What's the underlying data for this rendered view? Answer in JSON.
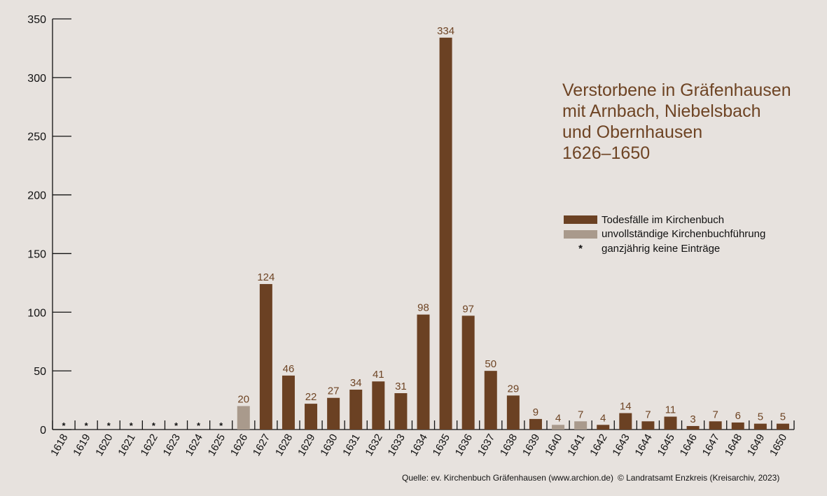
{
  "colors": {
    "background": "#e7e2de",
    "full": "#6b4123",
    "partial": "#a99a8c",
    "title": "#6e4424",
    "value_label": "#6e4424",
    "axis": "#111111"
  },
  "title_lines": [
    "Verstorbene in Gräfenhausen",
    "mit Arnbach, Niebelsbach",
    "und Obernhausen",
    "1626–1650"
  ],
  "legend": {
    "full_label": "Todesfälle im Kirchenbuch",
    "partial_label": "unvollständige Kirchenbuchführung",
    "star_symbol": "*",
    "star_label": "ganzjährig keine Einträge"
  },
  "source": {
    "quelle": "Quelle: ev. Kirchenbuch Gräfenhausen (www.archion.de)",
    "copyright": "© Landratsamt Enzkreis (Kreisarchiv, 2023)"
  },
  "chart_data": {
    "type": "bar",
    "ylim": [
      0,
      350
    ],
    "yticks": [
      0,
      50,
      100,
      150,
      200,
      250,
      300,
      350
    ],
    "categories": [
      "1618",
      "1619",
      "1620",
      "1621",
      "1622",
      "1623",
      "1624",
      "1625",
      "1626",
      "1627",
      "1628",
      "1629",
      "1630",
      "1631",
      "1632",
      "1633",
      "1634",
      "1635",
      "1636",
      "1637",
      "1638",
      "1639",
      "1640",
      "1641",
      "1642",
      "1643",
      "1644",
      "1645",
      "1646",
      "1647",
      "1648",
      "1649",
      "1650"
    ],
    "values": [
      null,
      null,
      null,
      null,
      null,
      null,
      null,
      null,
      20,
      124,
      46,
      22,
      27,
      34,
      41,
      31,
      98,
      334,
      97,
      50,
      29,
      9,
      4,
      7,
      4,
      14,
      7,
      11,
      3,
      7,
      6,
      5,
      5
    ],
    "status": [
      "none",
      "none",
      "none",
      "none",
      "none",
      "none",
      "none",
      "none",
      "partial",
      "full",
      "full",
      "full",
      "full",
      "full",
      "full",
      "full",
      "full",
      "full",
      "full",
      "full",
      "full",
      "full",
      "partial",
      "partial",
      "full",
      "full",
      "full",
      "full",
      "full",
      "full",
      "full",
      "full",
      "full"
    ],
    "series": [
      {
        "name": "Todesfälle im Kirchenbuch"
      },
      {
        "name": "unvollständige Kirchenbuchführung"
      }
    ],
    "legend_position": "right",
    "grid": false
  }
}
